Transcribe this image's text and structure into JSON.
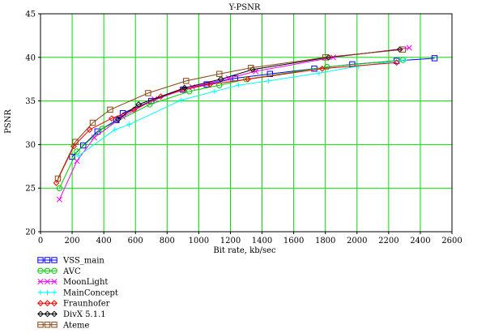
{
  "chart_data": {
    "type": "line",
    "title": "Y-PSNR",
    "xlabel": "Bit rate, kb/sec",
    "ylabel": "PSNR",
    "xlim": [
      0,
      2600
    ],
    "ylim": [
      20,
      45
    ],
    "x_ticks": [
      0,
      200,
      400,
      600,
      800,
      1000,
      1200,
      1400,
      1600,
      1800,
      2000,
      2200,
      2400,
      2600
    ],
    "y_ticks": [
      20,
      25,
      30,
      35,
      40,
      45
    ],
    "grid": true,
    "grid_color": "#00dd00",
    "legend_position": "bottom-left",
    "series": [
      {
        "name": "VSS_main",
        "color": "#0000ff",
        "marker": "square",
        "x": [
          200,
          270,
          360,
          480,
          520,
          700,
          900,
          1050,
          1230,
          1450,
          1730,
          1970,
          2250,
          2490
        ],
        "y": [
          28.6,
          29.9,
          31.5,
          32.8,
          33.6,
          35.0,
          36.3,
          36.9,
          37.6,
          38.1,
          38.7,
          39.2,
          39.6,
          39.9
        ]
      },
      {
        "name": "AVC",
        "color": "#00cc00",
        "marker": "circle",
        "x": [
          120,
          230,
          390,
          690,
          940,
          1130,
          1300,
          1810,
          2290
        ],
        "y": [
          25.0,
          29.2,
          31.8,
          34.6,
          36.1,
          36.8,
          37.5,
          38.9,
          39.7
        ]
      },
      {
        "name": "MoonLight",
        "color": "#ff00ff",
        "marker": "x",
        "x": [
          120,
          230,
          340,
          520,
          720,
          960,
          1190,
          1360,
          1850,
          2330
        ],
        "y": [
          23.7,
          28.1,
          30.8,
          33.2,
          35.2,
          36.6,
          37.6,
          38.4,
          40.0,
          41.1
        ]
      },
      {
        "name": "MainConcept",
        "color": "#00ffff",
        "marker": "plus",
        "x": [
          240,
          470,
          560,
          890,
          1100,
          1250,
          1440,
          1760,
          2010,
          2300
        ],
        "y": [
          28.7,
          31.7,
          32.3,
          35.1,
          36.1,
          36.8,
          37.3,
          38.2,
          39.0,
          39.7
        ]
      },
      {
        "name": "Fraunhofer",
        "color": "#ff0000",
        "marker": "diamond",
        "x": [
          100,
          210,
          310,
          450,
          590,
          760,
          900,
          1070,
          1310,
          1780,
          2250
        ],
        "y": [
          25.6,
          29.8,
          31.7,
          33.0,
          34.0,
          35.5,
          36.3,
          36.9,
          37.5,
          38.7,
          39.4
        ]
      },
      {
        "name": "DivX 5.1.1",
        "color": "#000000",
        "marker": "diamond",
        "x": [
          490,
          620,
          910,
          1140,
          1340,
          1820,
          2270
        ],
        "y": [
          32.9,
          34.6,
          36.5,
          37.5,
          38.6,
          40.0,
          40.9
        ]
      },
      {
        "name": "Ateme",
        "color": "#8b4513",
        "marker": "square",
        "x": [
          110,
          220,
          330,
          440,
          680,
          920,
          1130,
          1330,
          1800,
          2290
        ],
        "y": [
          26.1,
          30.3,
          32.5,
          34.0,
          35.9,
          37.3,
          38.1,
          38.8,
          40.0,
          40.9
        ]
      }
    ]
  }
}
